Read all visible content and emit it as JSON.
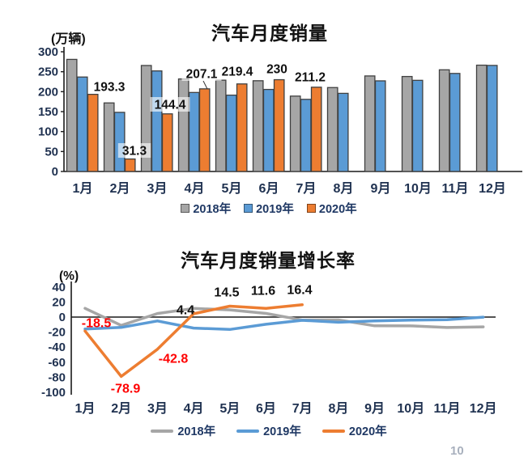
{
  "page": {
    "page_number_fragment": "10"
  },
  "colors": {
    "y2018": "#a6a6a6",
    "y2019": "#5b9bd5",
    "y2020": "#ed7d31",
    "bar_border": "#404040",
    "axis": "#1a1a1a",
    "tick_text": "#1f3150",
    "legend_text": "#1f3864",
    "label_black": "#111111",
    "label_red": "#ff0000"
  },
  "chart_data": [
    {
      "type": "bar",
      "title": "汽车月度销量",
      "unit": "(万辆)",
      "categories": [
        "1月",
        "2月",
        "3月",
        "4月",
        "5月",
        "6月",
        "7月",
        "8月",
        "9月",
        "10月",
        "11月",
        "12月"
      ],
      "y_ticks": [
        300,
        250,
        200,
        150,
        100,
        50,
        0
      ],
      "ylim": [
        0,
        300
      ],
      "grid": false,
      "legend_position": "bottom",
      "series": [
        {
          "name": "2018年",
          "color_key": "y2018",
          "values": [
            280.9,
            171.8,
            265.6,
            231.9,
            228.8,
            227.4,
            188.9,
            210.3,
            239.4,
            238.0,
            254.8,
            266.4
          ]
        },
        {
          "name": "2019年",
          "color_key": "y2019",
          "values": [
            236.7,
            148.2,
            252.0,
            198.0,
            191.3,
            205.6,
            180.8,
            195.8,
            227.1,
            228.4,
            245.7,
            265.8
          ]
        },
        {
          "name": "2020年",
          "color_key": "y2020",
          "values": [
            193.3,
            31.3,
            144.4,
            207.1,
            219.4,
            230,
            211.2
          ],
          "data_labels": [
            "193.3",
            "31.3",
            "144.4",
            "207.1",
            "219.4",
            "230",
            "211.2"
          ]
        }
      ]
    },
    {
      "type": "line",
      "title": "汽车月度销量增长率",
      "unit": "(%)",
      "categories": [
        "1月",
        "2月",
        "3月",
        "4月",
        "5月",
        "6月",
        "7月",
        "8月",
        "9月",
        "10月",
        "11月",
        "12月"
      ],
      "y_ticks": [
        40,
        20,
        0,
        -20,
        -40,
        -60,
        -80,
        -100
      ],
      "ylim": [
        -100,
        40
      ],
      "grid": false,
      "legend_position": "bottom",
      "series": [
        {
          "name": "2018年",
          "color_key": "y2018",
          "values": [
            11.6,
            -11.1,
            4.7,
            11.5,
            9.6,
            4.8,
            -4.0,
            -3.8,
            -11.6,
            -11.7,
            -13.9,
            -13.0
          ]
        },
        {
          "name": "2019年",
          "color_key": "y2019",
          "values": [
            -15.8,
            -13.8,
            -5.2,
            -14.6,
            -16.4,
            -9.6,
            -4.3,
            -6.9,
            -5.2,
            -4.0,
            -3.6,
            -0.1
          ]
        },
        {
          "name": "2020年",
          "color_key": "y2020",
          "values": [
            -18.5,
            -78.9,
            -42.8,
            4.4,
            14.5,
            11.6,
            16.4
          ],
          "data_labels": [
            {
              "text": "-18.5",
              "color": "red"
            },
            {
              "text": "-78.9",
              "color": "red"
            },
            {
              "text": "-42.8",
              "color": "red"
            },
            {
              "text": "4.4",
              "color": "black"
            },
            {
              "text": "14.5",
              "color": "black"
            },
            {
              "text": "11.6",
              "color": "black"
            },
            {
              "text": "16.4",
              "color": "black"
            }
          ]
        }
      ]
    }
  ]
}
